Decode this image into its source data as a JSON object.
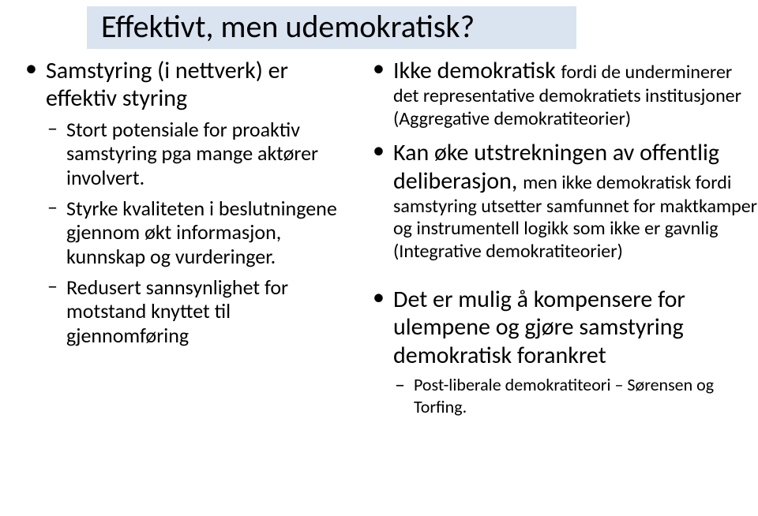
{
  "colors": {
    "title_bg": "#dae3f0",
    "text": "#000000",
    "page_bg": "#ffffff"
  },
  "title": "Effektivt, men udemokratisk?",
  "left": {
    "item1": "Samstyring (i nettverk) er effektiv styring",
    "sub1": "Stort potensiale for proaktiv samstyring  pga mange aktører involvert.",
    "sub2": "Styrke kvaliteten i beslutningene gjennom økt informasjon, kunnskap og vurderinger.",
    "sub3": "Redusert sannsynlighet for motstand knyttet til gjennomføring"
  },
  "right": {
    "b1_big": "Ikke demokratisk ",
    "b1_sm": "fordi de underminerer det representative demokratiets institusjoner (Aggregative demokratiteorier)",
    "b2_big1": "Kan øke utstrekningen av offentlig deliberasjon, ",
    "b2_sm": "men ikke demokratisk fordi samstyring utsetter samfunnet for maktkamper og instrumentell logikk som ikke er gavnlig (Integrative demokratiteorier)",
    "b3": "Det er mulig å kompensere for ulempene og gjøre samstyring demokratisk forankret",
    "b3_sub": "Post-liberale demokratiteori – Sørensen og Torfing."
  }
}
